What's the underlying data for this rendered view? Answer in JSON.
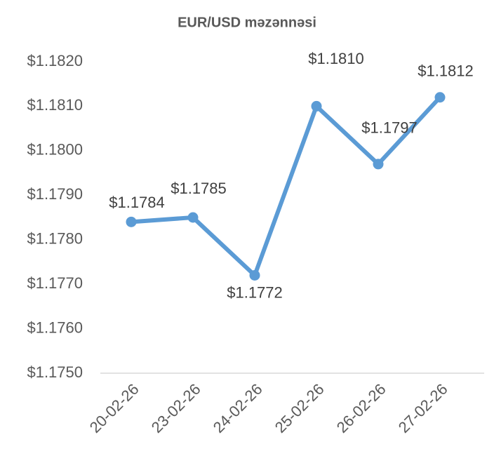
{
  "chart_data": {
    "type": "line",
    "title": "EUR/USD məzənnəsi",
    "categories": [
      "20-02-26",
      "23-02-26",
      "24-02-26",
      "25-02-26",
      "26-02-26",
      "27-02-26"
    ],
    "series": [
      {
        "color": "#5b9bd5",
        "values": [
          1.1784,
          1.1785,
          1.1772,
          1.181,
          1.1797,
          1.1812
        ],
        "value_labels": [
          "$1.1784",
          "$1.1785",
          "$1.1772",
          "$1.1810",
          "$1.1797",
          "$1.1812"
        ]
      }
    ],
    "ylim": [
      1.175,
      1.182
    ],
    "yticks": [
      {
        "value": 1.175,
        "label": "$1.1750"
      },
      {
        "value": 1.176,
        "label": "$1.1760"
      },
      {
        "value": 1.177,
        "label": "$1.1770"
      },
      {
        "value": 1.178,
        "label": "$1.1780"
      },
      {
        "value": 1.179,
        "label": "$1.1790"
      },
      {
        "value": 1.18,
        "label": "$1.1800"
      },
      {
        "value": 1.181,
        "label": "$1.1810"
      },
      {
        "value": 1.182,
        "label": "$1.1820"
      }
    ],
    "grid": false
  }
}
